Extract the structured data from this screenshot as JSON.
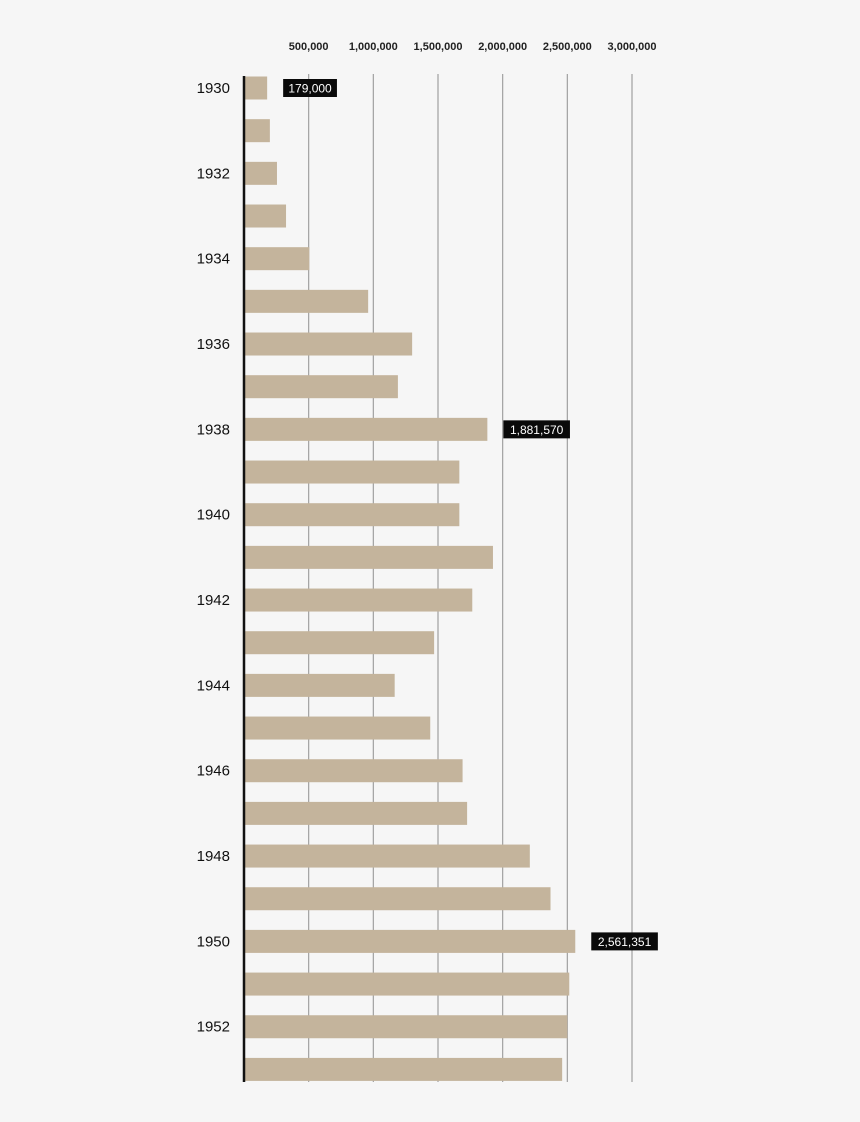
{
  "colors": {
    "background": "#f6f6f6",
    "bar": "#c4b49c",
    "grid": "#a0a0a0",
    "axis": "#111111",
    "callout_bg": "#0a0a0a",
    "callout_text": "#ffffff"
  },
  "chart_data": {
    "type": "bar",
    "orientation": "horizontal",
    "title": "",
    "xlabel": "",
    "ylabel": "",
    "xlim": [
      0,
      3000000
    ],
    "x_ticks": [
      500000,
      1000000,
      1500000,
      2000000,
      2500000,
      3000000
    ],
    "x_tick_labels": [
      "500,000",
      "1,000,000",
      "1,500,000",
      "2,000,000",
      "2,500,000",
      "3,000,000"
    ],
    "x_axis_position": "top",
    "grid": true,
    "categories": [
      "1930",
      "1931",
      "1932",
      "1933",
      "1934",
      "1935",
      "1936",
      "1937",
      "1938",
      "1939",
      "1940",
      "1941",
      "1942",
      "1943",
      "1944",
      "1945",
      "1946",
      "1947",
      "1948",
      "1949",
      "1950",
      "1951",
      "1952",
      "1953"
    ],
    "category_labels": [
      "1930",
      "",
      "1932",
      "",
      "1934",
      "",
      "1936",
      "",
      "1938",
      "",
      "1940",
      "",
      "1942",
      "",
      "1944",
      "",
      "1946",
      "",
      "1948",
      "",
      "1950",
      "",
      "1952",
      ""
    ],
    "values": [
      179000,
      200000,
      255000,
      325000,
      505000,
      960000,
      1300000,
      1190000,
      1881570,
      1665000,
      1665000,
      1925000,
      1765000,
      1470000,
      1165000,
      1440000,
      1690000,
      1725000,
      2210000,
      2370000,
      2561351,
      2515000,
      2500000,
      2460000
    ],
    "callouts": [
      {
        "category": "1930",
        "label": "179,000"
      },
      {
        "category": "1938",
        "label": "1,881,570"
      },
      {
        "category": "1950",
        "label": "2,561,351"
      }
    ]
  }
}
